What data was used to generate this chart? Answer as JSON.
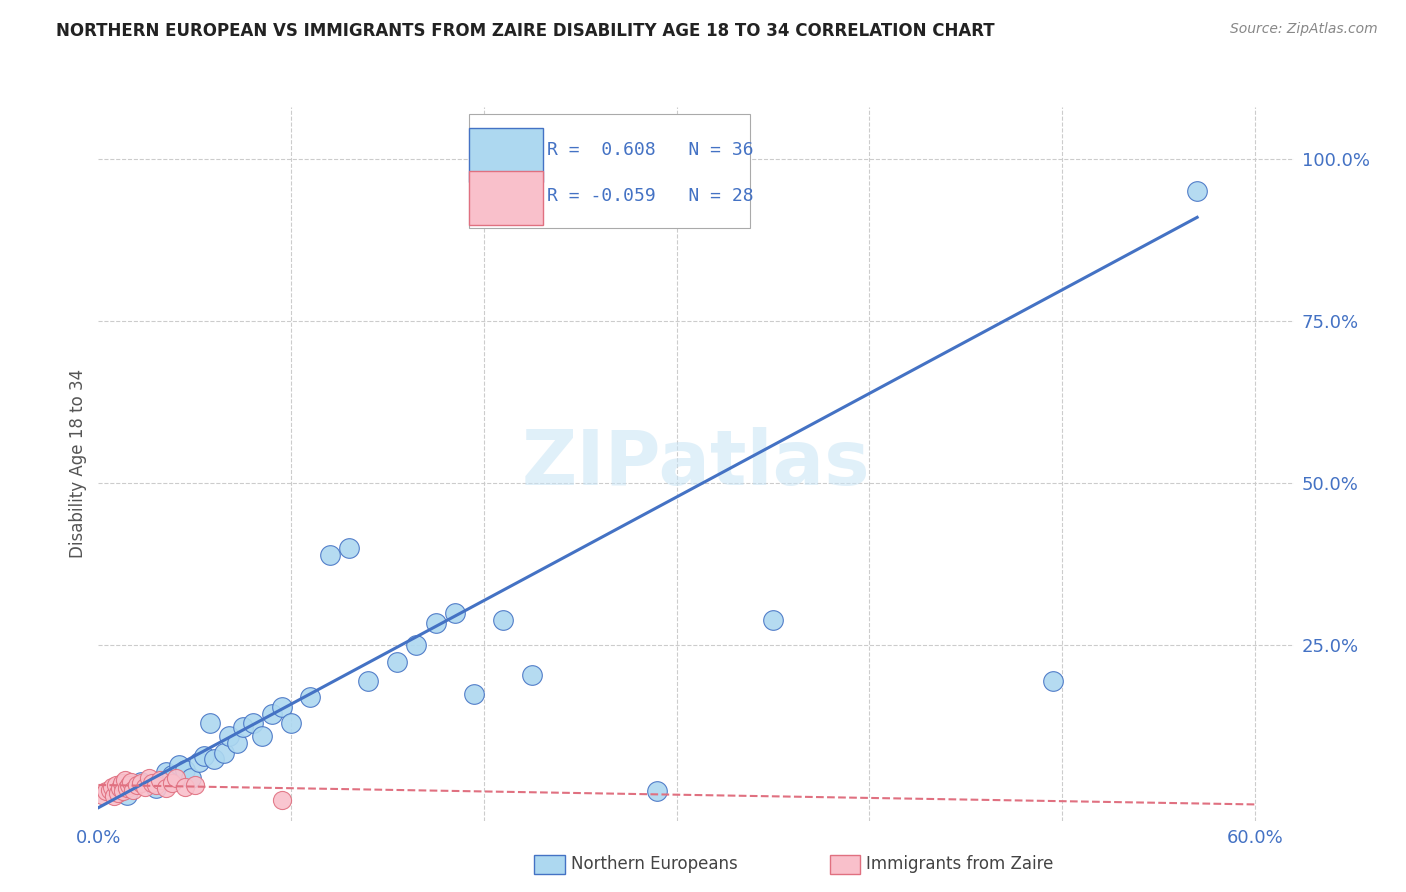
{
  "title": "NORTHERN EUROPEAN VS IMMIGRANTS FROM ZAIRE DISABILITY AGE 18 TO 34 CORRELATION CHART",
  "source": "Source: ZipAtlas.com",
  "ylabel": "Disability Age 18 to 34",
  "xlim": [
    0.0,
    0.62
  ],
  "ylim": [
    -0.02,
    1.08
  ],
  "blue_R": 0.608,
  "blue_N": 36,
  "pink_R": -0.059,
  "pink_N": 28,
  "blue_color": "#ADD8F0",
  "pink_color": "#F9C0CB",
  "blue_line_color": "#4472C4",
  "pink_line_color": "#E07080",
  "watermark": "ZIPatlas",
  "blue_line_x0": 0.0,
  "blue_line_y0": 0.0,
  "blue_line_x1": 0.57,
  "blue_line_y1": 0.91,
  "pink_line_x0": 0.0,
  "pink_line_y0": 0.035,
  "pink_line_x1": 0.6,
  "pink_line_y1": 0.005,
  "blue_points_x": [
    0.015,
    0.022,
    0.03,
    0.035,
    0.038,
    0.042,
    0.045,
    0.048,
    0.052,
    0.055,
    0.058,
    0.06,
    0.065,
    0.068,
    0.072,
    0.075,
    0.08,
    0.085,
    0.09,
    0.095,
    0.1,
    0.11,
    0.12,
    0.13,
    0.14,
    0.155,
    0.165,
    0.175,
    0.185,
    0.195,
    0.21,
    0.225,
    0.29,
    0.35,
    0.495,
    0.57
  ],
  "blue_points_y": [
    0.02,
    0.04,
    0.03,
    0.055,
    0.05,
    0.065,
    0.058,
    0.045,
    0.07,
    0.08,
    0.13,
    0.075,
    0.085,
    0.11,
    0.1,
    0.125,
    0.13,
    0.11,
    0.145,
    0.155,
    0.13,
    0.17,
    0.39,
    0.4,
    0.195,
    0.225,
    0.25,
    0.285,
    0.3,
    0.175,
    0.29,
    0.205,
    0.025,
    0.29,
    0.195,
    0.95
  ],
  "pink_points_x": [
    0.002,
    0.004,
    0.006,
    0.007,
    0.008,
    0.009,
    0.01,
    0.011,
    0.012,
    0.013,
    0.014,
    0.015,
    0.016,
    0.017,
    0.018,
    0.02,
    0.022,
    0.024,
    0.026,
    0.028,
    0.03,
    0.032,
    0.035,
    0.038,
    0.04,
    0.045,
    0.05,
    0.095
  ],
  "pink_points_y": [
    0.02,
    0.025,
    0.028,
    0.032,
    0.018,
    0.035,
    0.022,
    0.03,
    0.038,
    0.025,
    0.042,
    0.03,
    0.035,
    0.04,
    0.028,
    0.035,
    0.038,
    0.032,
    0.045,
    0.038,
    0.035,
    0.042,
    0.03,
    0.038,
    0.045,
    0.032,
    0.035,
    0.012
  ]
}
